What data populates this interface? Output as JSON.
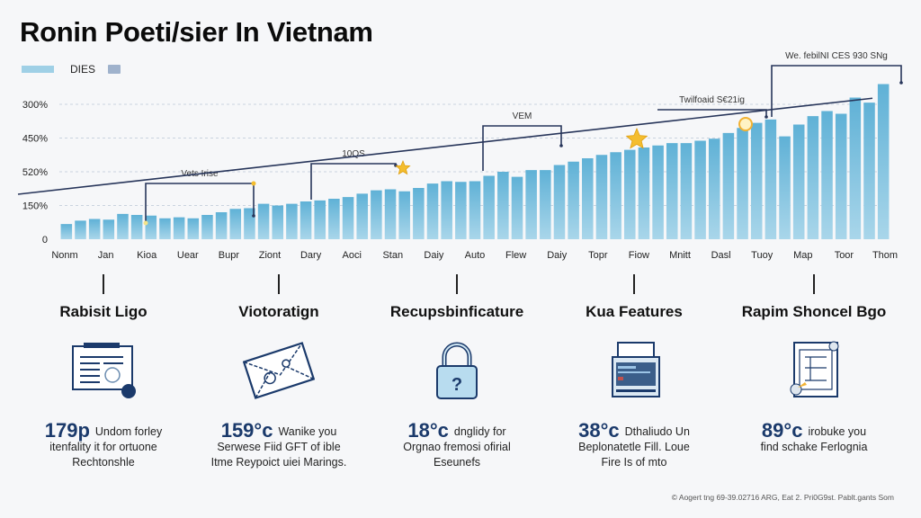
{
  "header": {
    "title": "Ronin Poeti/sier In Vietnam",
    "legend_label": "DIES",
    "legend_color": "#9fd0e6"
  },
  "chart_data": {
    "type": "bar",
    "title": "Ronin Poeti/sier In Vietnam",
    "xlabel": "",
    "ylabel": "",
    "legend": [
      {
        "name": "DIES",
        "color": "#9fd0e6"
      }
    ],
    "legend_placement": "top-left",
    "grid": true,
    "y_ticks": [
      "0",
      "150%",
      "520%",
      "450%",
      "300%"
    ],
    "ylim": [
      0,
      4
    ],
    "x_tick_labels": [
      "Nonm",
      "Jan",
      "Kioa",
      "Uear",
      "Bupr",
      "Ziont",
      "Dary",
      "Aoci",
      "Stan",
      "Daiy",
      "Auto",
      "Flew",
      "Daiy",
      "Topr",
      "Fiow",
      "Mnitt",
      "Dasl",
      "Tuoy",
      "Map",
      "Toor",
      "Thom"
    ],
    "values": [
      0.45,
      0.55,
      0.6,
      0.58,
      0.75,
      0.72,
      0.7,
      0.62,
      0.65,
      0.62,
      0.72,
      0.8,
      0.9,
      0.92,
      1.05,
      1.0,
      1.05,
      1.12,
      1.15,
      1.2,
      1.25,
      1.35,
      1.45,
      1.48,
      1.42,
      1.52,
      1.65,
      1.72,
      1.7,
      1.72,
      1.88,
      2.0,
      1.85,
      2.05,
      2.05,
      2.2,
      2.3,
      2.4,
      2.5,
      2.58,
      2.65,
      2.72,
      2.78,
      2.85,
      2.85,
      2.92,
      2.98,
      3.15,
      3.3,
      3.45,
      3.55,
      3.05,
      3.4,
      3.65,
      3.8,
      3.72,
      4.2,
      4.05,
      4.6
    ],
    "trend_line": {
      "start": 1.6,
      "end": 4.5
    },
    "annotations": [
      {
        "label": "Vets Irise",
        "bar_index": 6,
        "point": "upper-left"
      },
      {
        "label": "10QS",
        "bar_index": 18
      },
      {
        "label": "VEM",
        "bar_index": 30
      },
      {
        "label": "Twilfoaid S€21ig",
        "bar_index": 46
      },
      {
        "label": "We. febilNI CES 930 SNg",
        "bar_index": 52
      }
    ]
  },
  "features": [
    {
      "title": "Rabisit Ligo",
      "icon": "document-icon",
      "stat": "179p",
      "lines": [
        "Undom forley",
        "itenfality it for ortuone",
        "Rechtonshle"
      ]
    },
    {
      "title": "Viotoratign",
      "icon": "envelope-icon",
      "stat": "159°c",
      "lines": [
        "Wanike you",
        "Serwese  Fiid GFT of ible",
        "Itme Reypoict uiei Marings."
      ]
    },
    {
      "title": "Recupsbinficature",
      "icon": "padlock-icon",
      "stat": "18°c",
      "lines": [
        "dnglidy for",
        "Orgnao fremosi ofirial",
        "Eseunefs"
      ]
    },
    {
      "title": "Kua Features",
      "icon": "monitor-icon",
      "stat": "38°c",
      "lines": [
        "Dthaliudo Un",
        "Beplonatetle Fill. Loue",
        "Fire Is of mto"
      ]
    },
    {
      "title": "Rapim Shoncel Bgo",
      "icon": "blueprint-icon",
      "stat": "89°c",
      "lines": [
        "irobuke you",
        "find schake Ferlognia"
      ]
    }
  ],
  "footer": {
    "text": "© Aogert tng 69-39.02716 ARG, Eat 2. Pri0G9st. Pablt.gants Som"
  }
}
